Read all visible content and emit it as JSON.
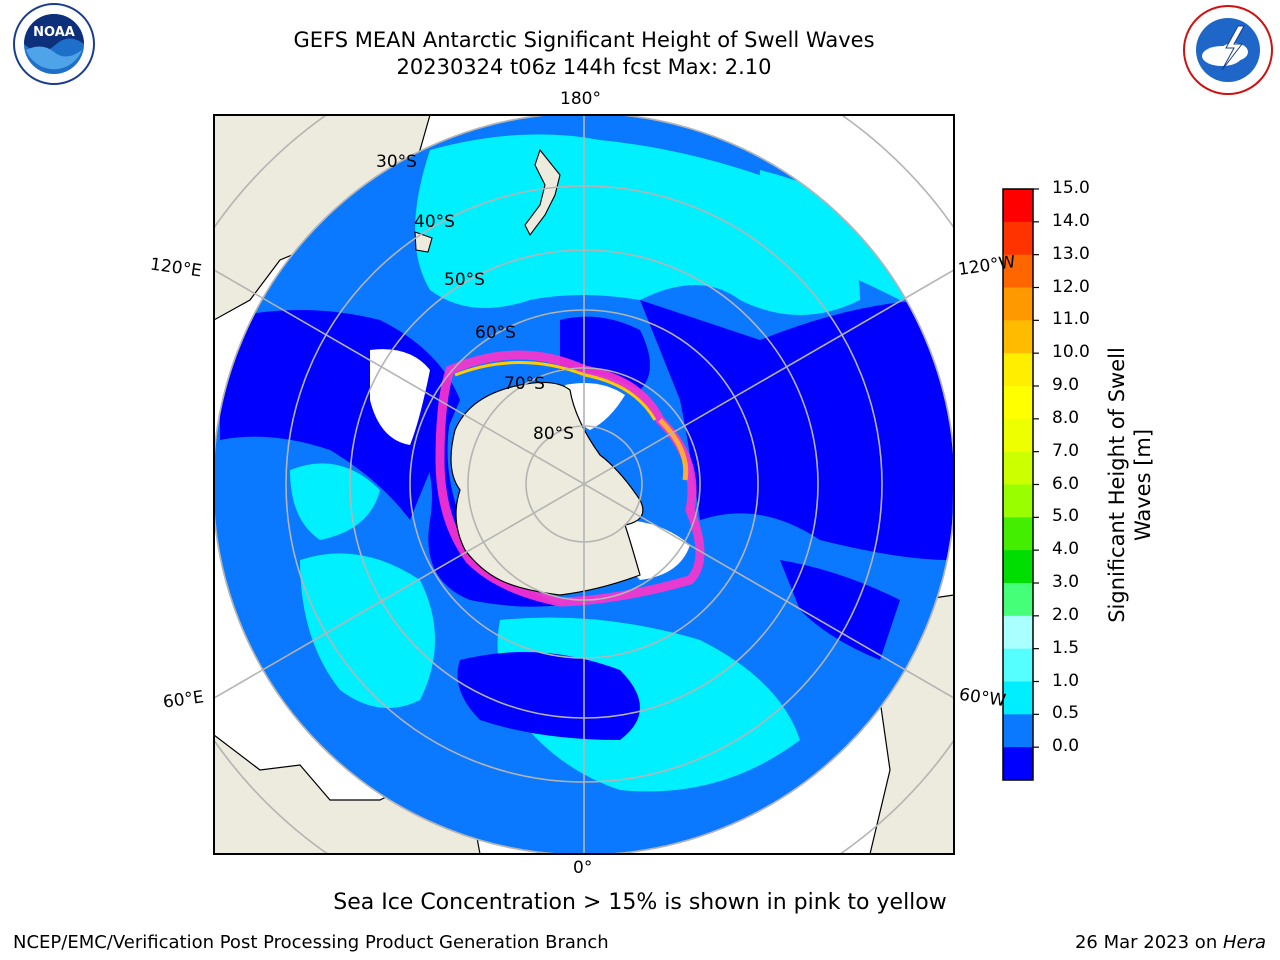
{
  "header": {
    "title_line1": "GEFS MEAN Antarctic Significant Height of Swell Waves",
    "title_line2": "20230324 t06z 144h fcst   Max: 2.10"
  },
  "logos": {
    "left": {
      "name": "noaa-logo",
      "text": "NOAA",
      "ring_text": "NATIONAL OCEANIC AND ATMOSPHERIC ADMINISTRATION · U.S. DEPARTMENT OF COMMERCE"
    },
    "right": {
      "name": "national-weather-service-logo",
      "ring_text": "NATIONAL WEATHER SERVICE"
    }
  },
  "map": {
    "projection": "south-polar-stereographic",
    "longitude_labels": {
      "top": "180°",
      "bottom": "0°",
      "upper_left": "120°E",
      "upper_right": "120°W",
      "lower_left": "60°E",
      "lower_right": "60°W"
    },
    "latitude_labels": [
      "30°S",
      "40°S",
      "50°S",
      "60°S",
      "70°S",
      "80°S"
    ],
    "colors": {
      "land": "#ecebdd",
      "ocean_low": "#0000ff",
      "ocean_mid": "#0a78ff",
      "ocean_high": "#00f0ff",
      "grid": "#b4b4b4",
      "sea_ice_low": "#ff33cc",
      "sea_ice_high": "#ffcc00"
    }
  },
  "colorbar": {
    "label": "Significant Height of Swell Waves [m]",
    "label_line1": "Significant Height of Swell",
    "label_line2": "Waves [m]",
    "ticks": [
      "15.0",
      "14.0",
      "13.0",
      "12.0",
      "11.0",
      "10.0",
      "9.0",
      "8.0",
      "7.0",
      "6.0",
      "5.0",
      "4.0",
      "3.0",
      "2.0",
      "1.5",
      "1.0",
      "0.5",
      "0.0"
    ],
    "bands_top_to_bottom": [
      "#ff0000",
      "#ff3300",
      "#ff6600",
      "#ff9900",
      "#ffbb00",
      "#ffee00",
      "#ffff00",
      "#eeff00",
      "#ccff00",
      "#99ff00",
      "#44ee00",
      "#00dd00",
      "#44ff77",
      "#aaffff",
      "#55ffff",
      "#00eeff",
      "#0a78ff",
      "#0000ff"
    ]
  },
  "notes": {
    "ice": "Sea Ice Concentration > 15% is shown in pink to yellow"
  },
  "footer": {
    "left": "NCEP/EMC/Verification Post Processing Product Generation Branch",
    "right_date": "26 Mar 2023 on ",
    "right_machine": "Hera"
  }
}
